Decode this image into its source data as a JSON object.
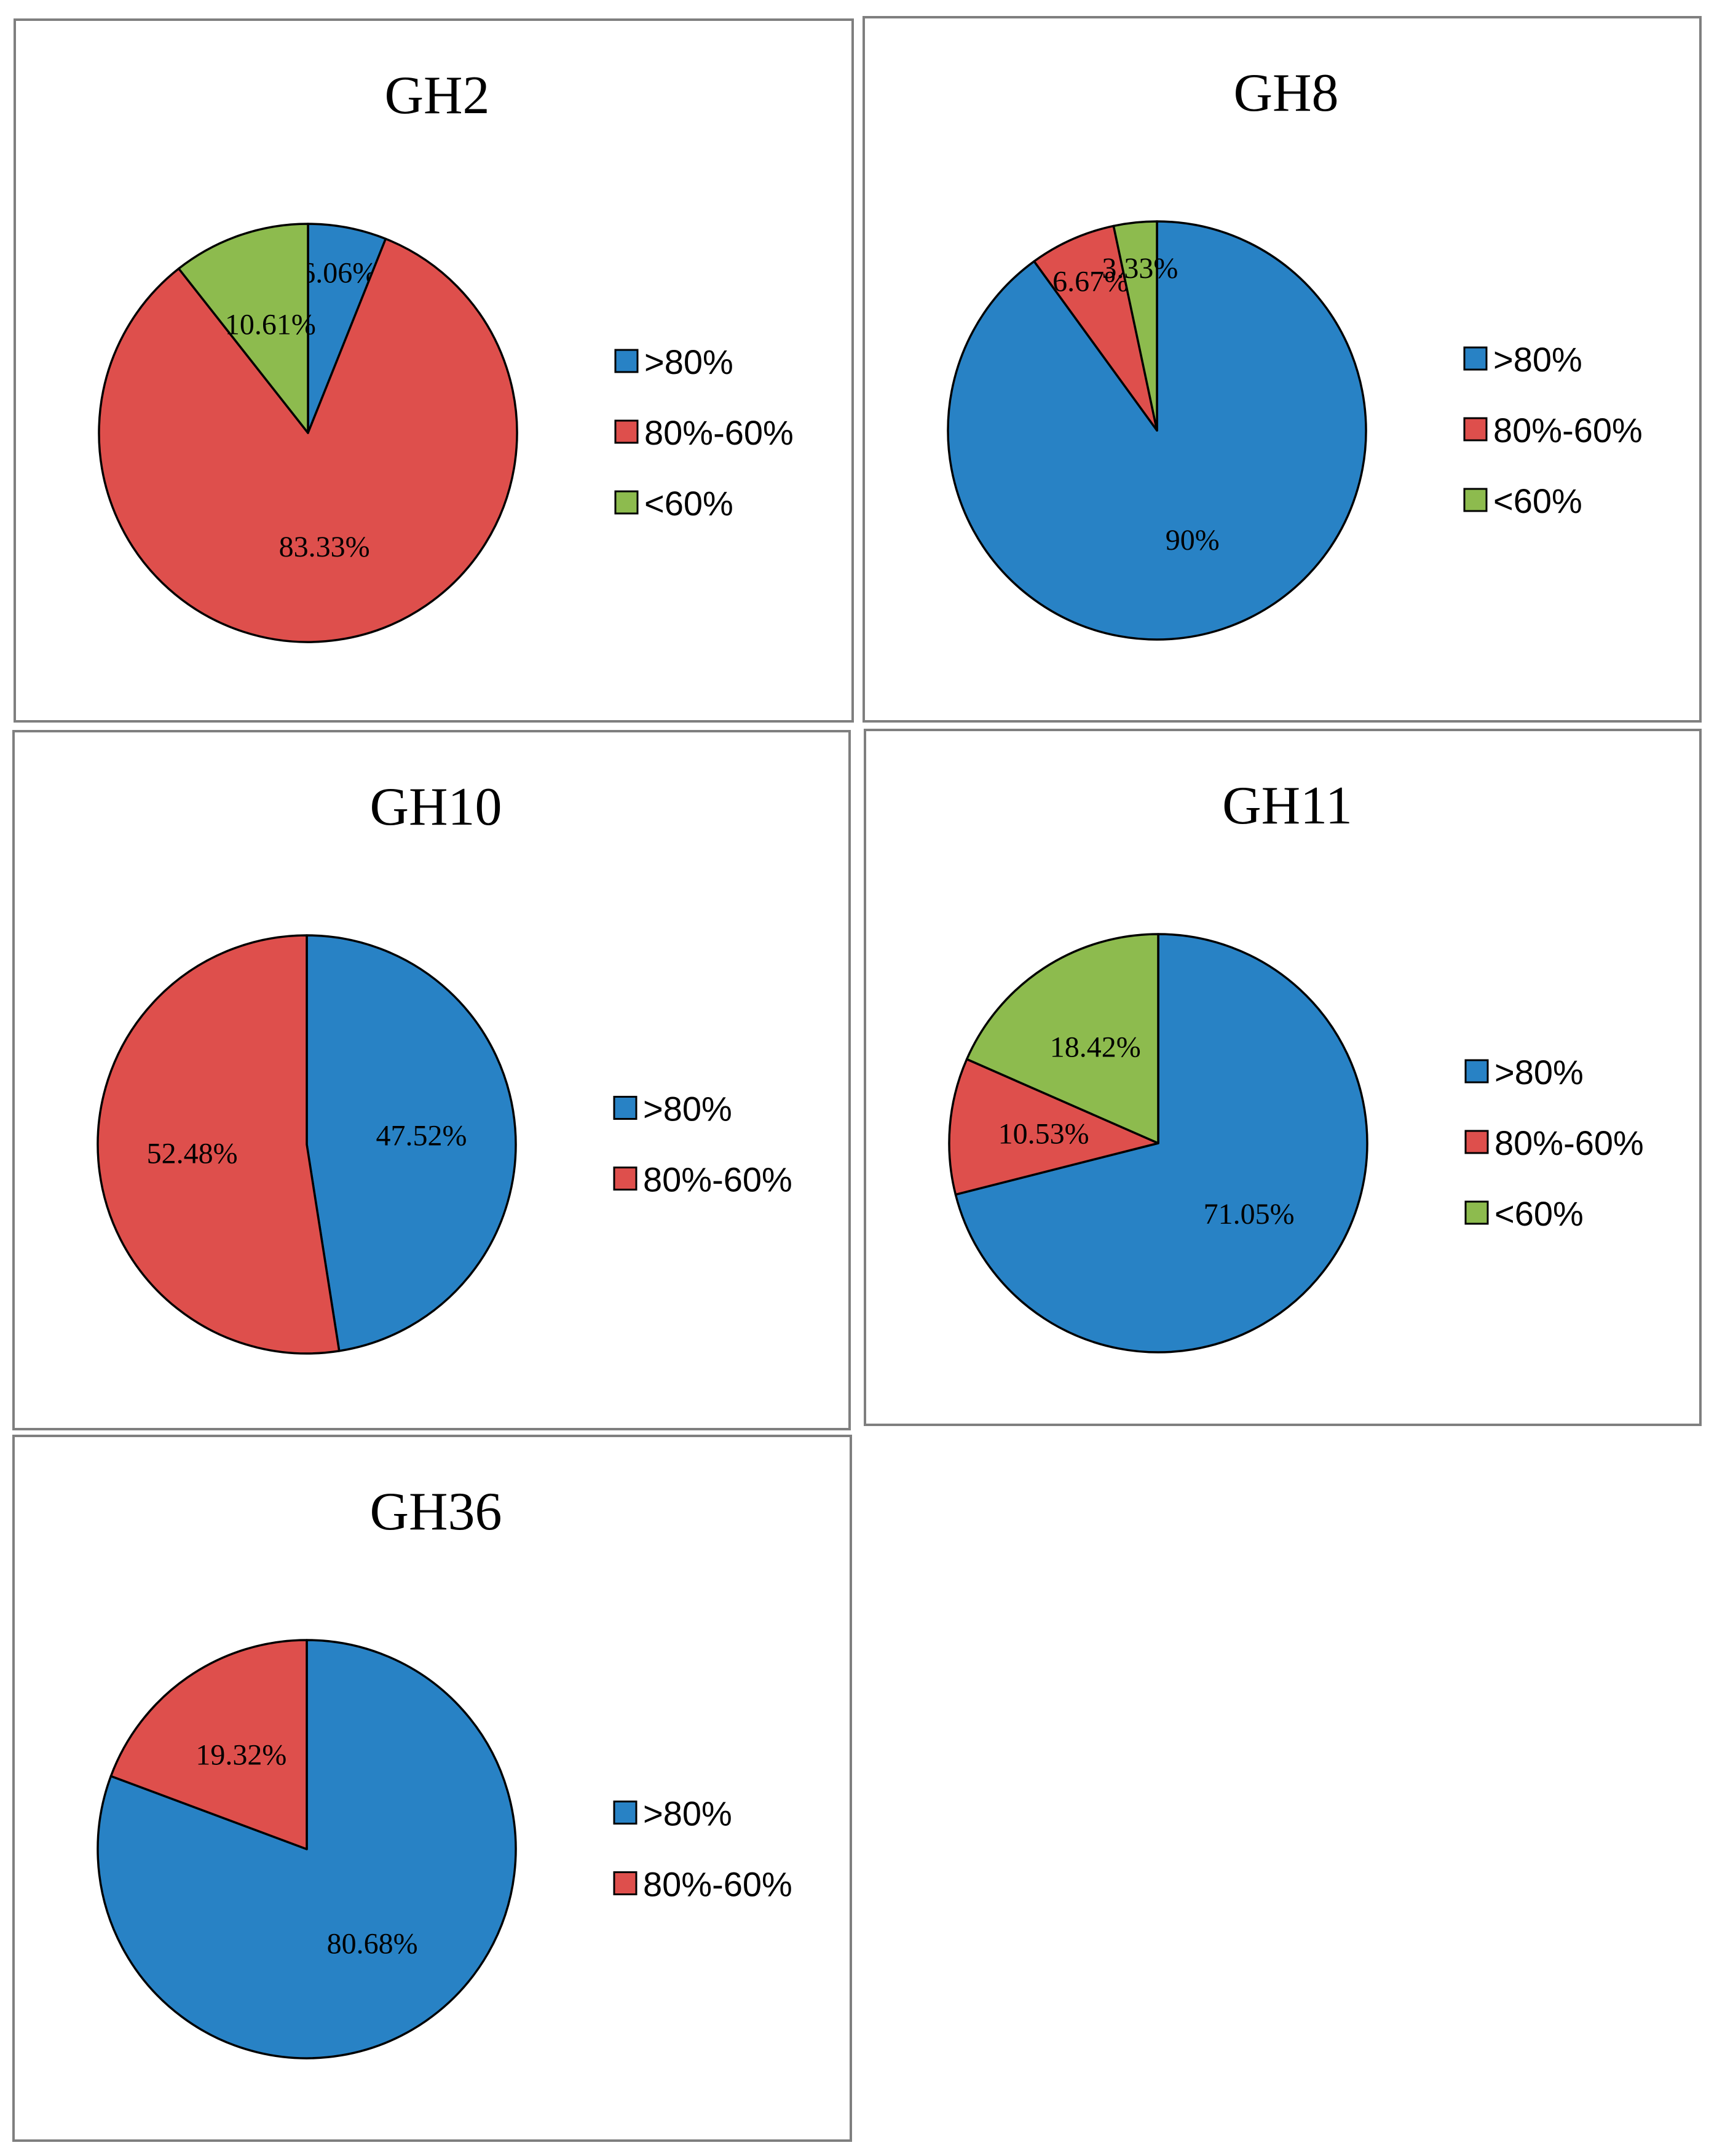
{
  "colors": {
    ">80%": "#2882C5",
    "80%-60%": "#DE4F4C",
    "<60%": "#8DBB4E"
  },
  "chart_data": [
    {
      "type": "pie",
      "title": "GH2",
      "categories": [
        ">80%",
        "80%-60%",
        "<60%"
      ],
      "values": [
        6.06,
        83.33,
        10.61
      ],
      "labels": [
        "6.06%",
        "83.33%",
        "10.61%"
      ],
      "legend": "right"
    },
    {
      "type": "pie",
      "title": "GH8",
      "categories": [
        ">80%",
        "80%-60%",
        "<60%"
      ],
      "values": [
        90,
        6.67,
        3.33
      ],
      "labels": [
        "90%",
        "6.67%",
        "3.33%"
      ],
      "legend": "right"
    },
    {
      "type": "pie",
      "title": "GH10",
      "categories": [
        ">80%",
        "80%-60%"
      ],
      "values": [
        47.52,
        52.48
      ],
      "labels": [
        "47.52%",
        "52.48%"
      ],
      "legend": "right"
    },
    {
      "type": "pie",
      "title": "GH11",
      "categories": [
        ">80%",
        "80%-60%",
        "<60%"
      ],
      "values": [
        71.05,
        10.53,
        18.42
      ],
      "labels": [
        "71.05%",
        "10.53%",
        "18.42%"
      ],
      "legend": "right"
    },
    {
      "type": "pie",
      "title": "GH36",
      "categories": [
        ">80%",
        "80%-60%"
      ],
      "values": [
        80.68,
        19.32
      ],
      "labels": [
        "80.68%",
        "19.32%"
      ],
      "legend": "right"
    }
  ]
}
